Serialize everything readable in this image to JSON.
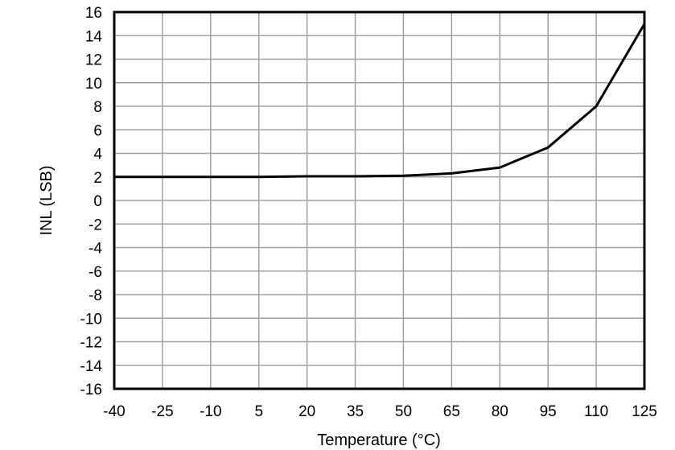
{
  "chart_data": {
    "type": "line",
    "title": "",
    "xlabel": "Temperature (°C)",
    "ylabel": "INL (LSB)",
    "xlim": [
      -40,
      125
    ],
    "ylim": [
      -16,
      16
    ],
    "x_ticks": [
      "-40",
      "-25",
      "-10",
      "5",
      "20",
      "35",
      "50",
      "65",
      "80",
      "95",
      "110",
      "125"
    ],
    "y_ticks": [
      "16",
      "14",
      "12",
      "10",
      "8",
      "6",
      "4",
      "2",
      "0",
      "-2",
      "-4",
      "-6",
      "-8",
      "-10",
      "-12",
      "-14",
      "-16"
    ],
    "grid": true,
    "legend": null,
    "x": [
      -40,
      -25,
      -10,
      5,
      20,
      35,
      50,
      65,
      80,
      95,
      110,
      125
    ],
    "series": [
      {
        "name": "INL",
        "color": "#000000",
        "values": [
          2.0,
          2.0,
          2.0,
          2.0,
          2.05,
          2.05,
          2.1,
          2.3,
          2.8,
          4.5,
          8.0,
          15.0
        ]
      }
    ]
  }
}
